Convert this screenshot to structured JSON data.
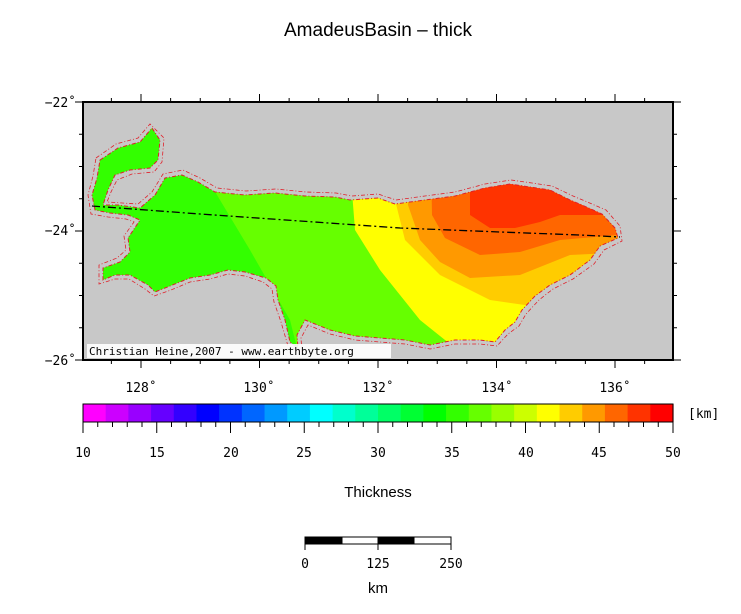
{
  "title": "AmadeusBasin – thick",
  "credit": "Christian Heine,2007 - www.earthbyte.org",
  "map": {
    "background_color": "#c8c8c8",
    "lat_labels": [
      "−22˚",
      "−24˚",
      "−26˚"
    ],
    "lon_labels": [
      "128˚",
      "130˚",
      "132˚",
      "134˚",
      "136˚"
    ],
    "outline_color": "#e0202a",
    "profile_line_color": "#000000"
  },
  "colorbar": {
    "label": "Thickness",
    "unit": "[km]",
    "tick_labels": [
      "10",
      "15",
      "20",
      "25",
      "30",
      "35",
      "40",
      "45",
      "50"
    ],
    "colors": [
      "#ff00ff",
      "#cc00ff",
      "#9900ff",
      "#6600ff",
      "#3300ff",
      "#0000ff",
      "#0033ff",
      "#0066ff",
      "#0099ff",
      "#00ccff",
      "#00ffff",
      "#00ffcc",
      "#00ff99",
      "#00ff66",
      "#00ff33",
      "#00ff00",
      "#33ff00",
      "#66ff00",
      "#99ff00",
      "#ccff00",
      "#ffff00",
      "#ffcc00",
      "#ff9900",
      "#ff6600",
      "#ff3300",
      "#ff0000"
    ],
    "min": 10,
    "max": 50
  },
  "scalebar": {
    "labels": [
      "0",
      "125",
      "250"
    ],
    "unit": "km"
  },
  "zones": [
    {
      "name": "green",
      "color": "#33ff00"
    },
    {
      "name": "light-green",
      "color": "#66ff00"
    },
    {
      "name": "yellow",
      "color": "#ffff00"
    },
    {
      "name": "amber",
      "color": "#ffcc00"
    },
    {
      "name": "orange",
      "color": "#ff9900"
    },
    {
      "name": "red-orange",
      "color": "#ff6600"
    },
    {
      "name": "red",
      "color": "#ff3300"
    }
  ]
}
